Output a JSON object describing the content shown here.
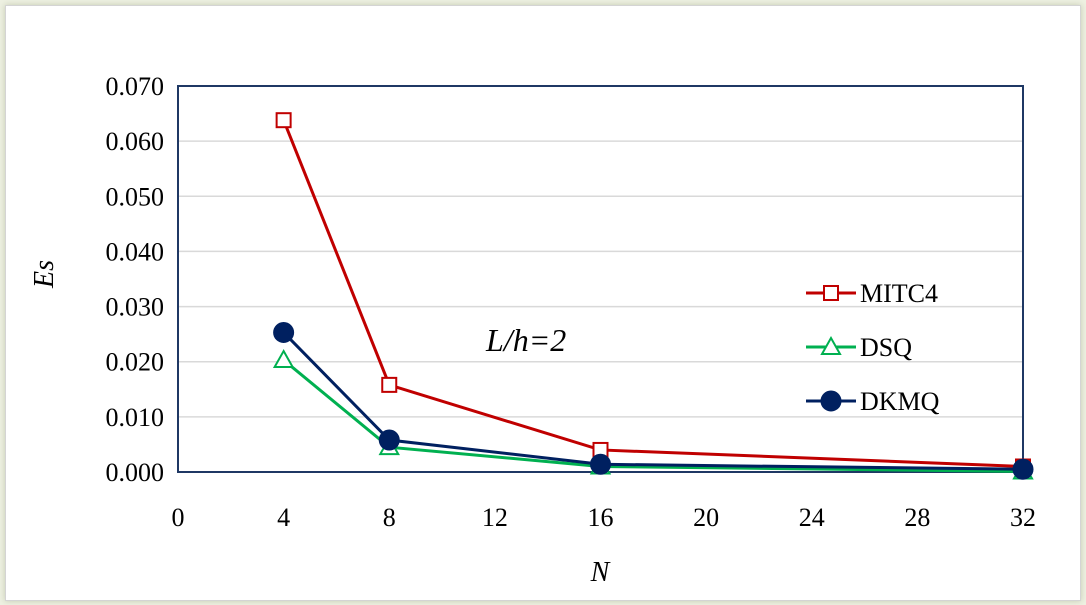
{
  "chart_data": {
    "type": "line",
    "title": "",
    "xlabel": "N",
    "ylabel": "Es",
    "xlim": [
      0,
      32
    ],
    "ylim": [
      0.0,
      0.07
    ],
    "xticks": [
      "0",
      "4",
      "8",
      "12",
      "16",
      "20",
      "24",
      "28",
      "32"
    ],
    "xtick_values": [
      0,
      4,
      8,
      12,
      16,
      20,
      24,
      28,
      32
    ],
    "yticks": [
      "0.000",
      "0.010",
      "0.020",
      "0.030",
      "0.040",
      "0.050",
      "0.060",
      "0.070"
    ],
    "ytick_values": [
      0.0,
      0.01,
      0.02,
      0.03,
      0.04,
      0.05,
      0.06,
      0.07
    ],
    "grid": "horizontal",
    "legend_position": "right",
    "annotation": "L/h=2",
    "x": [
      4,
      8,
      16,
      32
    ],
    "series": [
      {
        "name": "MITC4",
        "values": [
          0.0638,
          0.0158,
          0.004,
          0.001
        ],
        "color": "#c00000",
        "marker": "open-square"
      },
      {
        "name": "DSQ",
        "values": [
          0.0203,
          0.0045,
          0.001,
          0.0001
        ],
        "color": "#00b050",
        "marker": "open-triangle"
      },
      {
        "name": "DKMQ",
        "values": [
          0.0253,
          0.0058,
          0.0014,
          0.0005
        ],
        "color": "#002060",
        "marker": "filled-circle"
      }
    ]
  }
}
